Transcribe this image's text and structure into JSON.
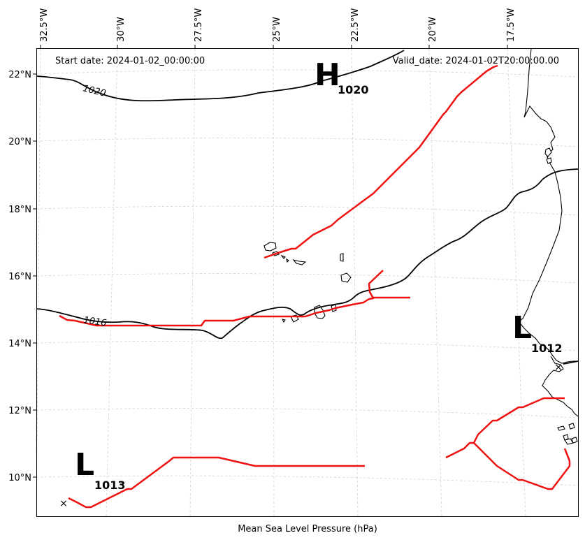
{
  "header": {
    "start_date": "Start date: 2024-01-02_00:00:00",
    "valid_date": "Valid_date: 2024-01-02T20:00:00.00"
  },
  "footer": {
    "xlabel": "Mean Sea Level Pressure (hPa)"
  },
  "lon_ticks": [
    "32.5°W",
    "30°W",
    "27.5°W",
    "25°W",
    "22.5°W",
    "20°W",
    "17.5°W"
  ],
  "lat_ticks": [
    "22°N",
    "20°N",
    "18°N",
    "16°N",
    "14°N",
    "12°N",
    "10°N"
  ],
  "isobar_labels": [
    "1020",
    "1016"
  ],
  "pressure_centers": [
    {
      "symbol": "H",
      "value": "1020"
    },
    {
      "symbol": "L",
      "value": "1012"
    },
    {
      "symbol": "L",
      "value": "1013"
    }
  ],
  "markers": [
    "×"
  ],
  "colors": {
    "isobar": "#000000",
    "front": "#ee1111",
    "grid": "#d0d0d0"
  }
}
